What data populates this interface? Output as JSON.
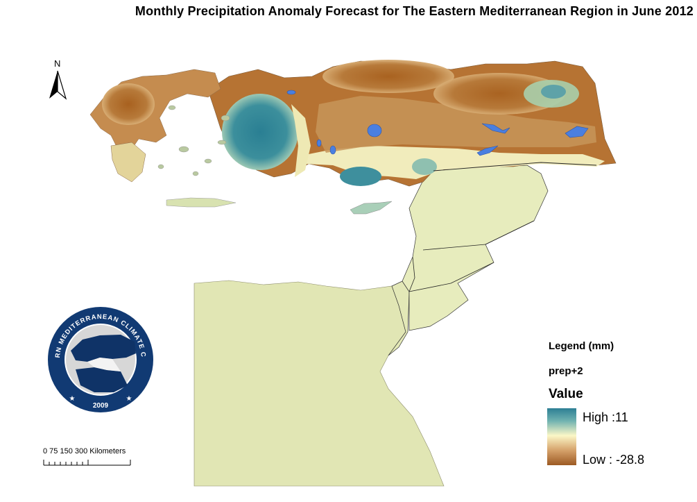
{
  "title": "Monthly Precipitation Anomaly Forecast for The Eastern Mediterranean Region in June 2012",
  "north_arrow": {
    "label": "N"
  },
  "scale_bar": {
    "text": "0  75 150     300 Kilometers"
  },
  "logo": {
    "ring_text": "EASTERN MEDITERRANEAN CLIMATE CENTRE",
    "year": "2009",
    "colors": {
      "ring": "#113a73",
      "inner": "#ffffff",
      "land": "#0f3367"
    }
  },
  "legend": {
    "title": "Legend (mm)",
    "layer": "prep+2",
    "field": "Value",
    "high_label": "High :11",
    "low_label": "Low : -28.8",
    "high_value": 11,
    "low_value": -28.8,
    "colors": {
      "high": "#2d7f94",
      "mid": "#fbf7c7",
      "low": "#9c5a23"
    }
  },
  "map_colors": {
    "background": "#ffffff",
    "near_zero": "#e4eab7",
    "dry": "#b5712f",
    "wet": "#2f8797",
    "lake": "#4a7fe0",
    "border": "#333333"
  }
}
